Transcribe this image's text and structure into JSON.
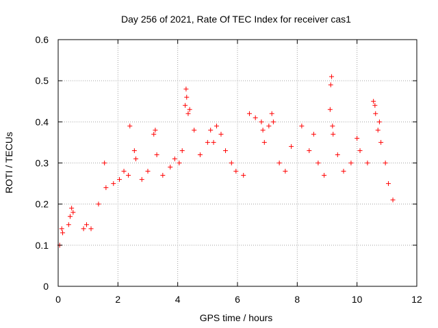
{
  "chart_data": {
    "type": "scatter",
    "title": "Day 256 of 2021, Rate Of TEC Index for receiver cas1",
    "xlabel": "GPS time / hours",
    "ylabel": "ROTI / TECUs",
    "xlim": [
      0,
      12
    ],
    "ylim": [
      0,
      0.6
    ],
    "x_ticks": [
      "0",
      "2",
      "4",
      "6",
      "8",
      "10",
      "12"
    ],
    "y_ticks": [
      "0",
      "0.1",
      "0.2",
      "0.3",
      "0.4",
      "0.5",
      "0.6"
    ],
    "grid": true,
    "marker": "+",
    "color": "#ff0000",
    "series": [
      {
        "name": "",
        "points": [
          [
            0.05,
            0.1
          ],
          [
            0.12,
            0.14
          ],
          [
            0.15,
            0.13
          ],
          [
            0.35,
            0.15
          ],
          [
            0.4,
            0.17
          ],
          [
            0.45,
            0.19
          ],
          [
            0.5,
            0.18
          ],
          [
            0.85,
            0.14
          ],
          [
            0.95,
            0.15
          ],
          [
            1.1,
            0.14
          ],
          [
            1.35,
            0.2
          ],
          [
            1.55,
            0.3
          ],
          [
            1.6,
            0.24
          ],
          [
            1.85,
            0.25
          ],
          [
            2.05,
            0.26
          ],
          [
            2.2,
            0.28
          ],
          [
            2.35,
            0.27
          ],
          [
            2.4,
            0.39
          ],
          [
            2.55,
            0.33
          ],
          [
            2.6,
            0.31
          ],
          [
            2.8,
            0.26
          ],
          [
            3.0,
            0.28
          ],
          [
            3.2,
            0.37
          ],
          [
            3.25,
            0.38
          ],
          [
            3.3,
            0.32
          ],
          [
            3.5,
            0.27
          ],
          [
            3.75,
            0.29
          ],
          [
            3.9,
            0.31
          ],
          [
            4.05,
            0.3
          ],
          [
            4.15,
            0.33
          ],
          [
            4.25,
            0.44
          ],
          [
            4.28,
            0.48
          ],
          [
            4.3,
            0.46
          ],
          [
            4.35,
            0.42
          ],
          [
            4.4,
            0.43
          ],
          [
            4.55,
            0.38
          ],
          [
            4.75,
            0.32
          ],
          [
            5.0,
            0.35
          ],
          [
            5.1,
            0.38
          ],
          [
            5.2,
            0.35
          ],
          [
            5.3,
            0.39
          ],
          [
            5.45,
            0.37
          ],
          [
            5.6,
            0.33
          ],
          [
            5.8,
            0.3
          ],
          [
            5.95,
            0.28
          ],
          [
            6.2,
            0.27
          ],
          [
            6.4,
            0.42
          ],
          [
            6.6,
            0.41
          ],
          [
            6.8,
            0.4
          ],
          [
            6.85,
            0.38
          ],
          [
            6.9,
            0.35
          ],
          [
            7.05,
            0.39
          ],
          [
            7.15,
            0.42
          ],
          [
            7.2,
            0.4
          ],
          [
            7.4,
            0.3
          ],
          [
            7.6,
            0.28
          ],
          [
            7.8,
            0.34
          ],
          [
            8.15,
            0.39
          ],
          [
            8.4,
            0.33
          ],
          [
            8.55,
            0.37
          ],
          [
            8.7,
            0.3
          ],
          [
            8.9,
            0.27
          ],
          [
            9.1,
            0.43
          ],
          [
            9.12,
            0.49
          ],
          [
            9.15,
            0.51
          ],
          [
            9.18,
            0.39
          ],
          [
            9.2,
            0.37
          ],
          [
            9.35,
            0.32
          ],
          [
            9.55,
            0.28
          ],
          [
            9.8,
            0.3
          ],
          [
            10.0,
            0.36
          ],
          [
            10.1,
            0.33
          ],
          [
            10.35,
            0.3
          ],
          [
            10.55,
            0.45
          ],
          [
            10.6,
            0.44
          ],
          [
            10.62,
            0.42
          ],
          [
            10.7,
            0.38
          ],
          [
            10.75,
            0.4
          ],
          [
            10.8,
            0.35
          ],
          [
            10.95,
            0.3
          ],
          [
            11.05,
            0.25
          ],
          [
            11.2,
            0.21
          ]
        ]
      }
    ]
  }
}
